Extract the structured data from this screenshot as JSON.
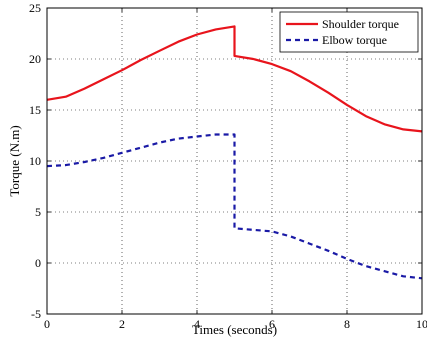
{
  "chart_data": {
    "type": "line",
    "title": "",
    "xlabel": "Times (seconds)",
    "ylabel": "Torque (N.m)",
    "xlim": [
      0,
      10
    ],
    "ylim": [
      -5,
      25
    ],
    "xticks": [
      0,
      2,
      4,
      6,
      8,
      10
    ],
    "yticks": [
      -5,
      0,
      5,
      10,
      15,
      20,
      25
    ],
    "grid": true,
    "legend_position": "top-right",
    "series": [
      {
        "name": "Shoulder torque",
        "color": "#e8141c",
        "style": "solid",
        "points": [
          [
            0,
            16.0
          ],
          [
            0.5,
            16.3
          ],
          [
            1,
            17.1
          ],
          [
            1.5,
            18.0
          ],
          [
            2,
            18.9
          ],
          [
            2.5,
            19.9
          ],
          [
            3,
            20.8
          ],
          [
            3.5,
            21.7
          ],
          [
            4,
            22.4
          ],
          [
            4.5,
            22.9
          ],
          [
            5,
            23.2
          ],
          [
            5,
            20.3
          ],
          [
            5.5,
            20.0
          ],
          [
            6,
            19.5
          ],
          [
            6.5,
            18.8
          ],
          [
            7,
            17.8
          ],
          [
            7.5,
            16.7
          ],
          [
            8,
            15.5
          ],
          [
            8.5,
            14.4
          ],
          [
            9,
            13.6
          ],
          [
            9.5,
            13.1
          ],
          [
            10,
            12.9
          ]
        ]
      },
      {
        "name": "Elbow torque",
        "color": "#1a1aa6",
        "style": "dashed",
        "points": [
          [
            0,
            9.5
          ],
          [
            0.5,
            9.6
          ],
          [
            1,
            9.9
          ],
          [
            1.5,
            10.3
          ],
          [
            2,
            10.8
          ],
          [
            2.5,
            11.3
          ],
          [
            3,
            11.8
          ],
          [
            3.5,
            12.2
          ],
          [
            4,
            12.4
          ],
          [
            4.5,
            12.6
          ],
          [
            5,
            12.6
          ],
          [
            5,
            3.4
          ],
          [
            6,
            3.1
          ],
          [
            6.5,
            2.6
          ],
          [
            7,
            1.9
          ],
          [
            7.5,
            1.2
          ],
          [
            8,
            0.4
          ],
          [
            8.5,
            -0.3
          ],
          [
            9,
            -0.8
          ],
          [
            9.5,
            -1.3
          ],
          [
            10,
            -1.5
          ]
        ]
      }
    ]
  }
}
